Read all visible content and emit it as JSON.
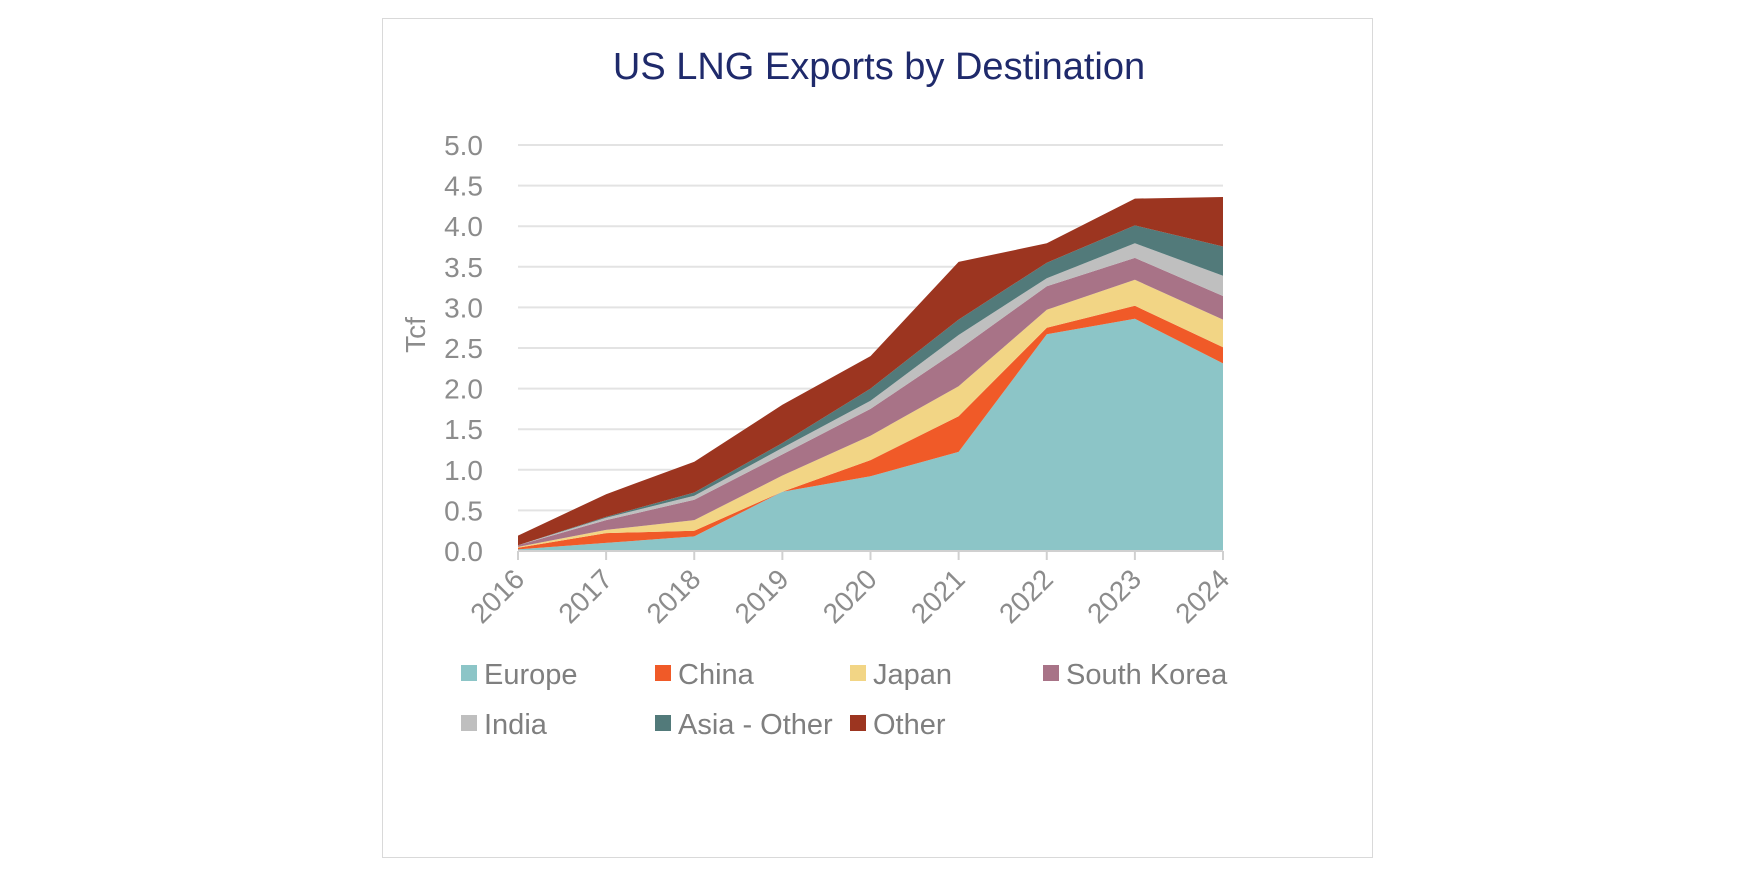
{
  "chart_data": {
    "type": "area",
    "stacked": true,
    "title": "US LNG Exports by Destination",
    "xlabel": "",
    "ylabel": "Tcf",
    "ylim": [
      0,
      5.0
    ],
    "yticks": [
      "0.0",
      "0.5",
      "1.0",
      "1.5",
      "2.0",
      "2.5",
      "3.0",
      "3.5",
      "4.0",
      "4.5",
      "5.0"
    ],
    "x": [
      "2016",
      "2017",
      "2018",
      "2019",
      "2020",
      "2021",
      "2022",
      "2023",
      "2024"
    ],
    "grid": true,
    "legend_position": "bottom",
    "series": [
      {
        "name": "Europe",
        "color": "#8cc5c7",
        "values": [
          0.02,
          0.1,
          0.18,
          0.73,
          0.92,
          1.22,
          2.67,
          2.86,
          2.31
        ]
      },
      {
        "name": "China",
        "color": "#f05a28",
        "values": [
          0.02,
          0.12,
          0.07,
          0.0,
          0.2,
          0.44,
          0.08,
          0.16,
          0.2
        ]
      },
      {
        "name": "Japan",
        "color": "#f2d585",
        "values": [
          0.01,
          0.04,
          0.13,
          0.2,
          0.3,
          0.37,
          0.22,
          0.32,
          0.34
        ]
      },
      {
        "name": "South Korea",
        "color": "#a87387",
        "values": [
          0.02,
          0.12,
          0.25,
          0.26,
          0.33,
          0.45,
          0.29,
          0.27,
          0.29
        ]
      },
      {
        "name": "India",
        "color": "#bfbfbf",
        "values": [
          0.0,
          0.03,
          0.05,
          0.08,
          0.1,
          0.18,
          0.1,
          0.18,
          0.25
        ]
      },
      {
        "name": "Asia - Other",
        "color": "#527a7a",
        "values": [
          0.0,
          0.01,
          0.04,
          0.06,
          0.15,
          0.19,
          0.19,
          0.22,
          0.36
        ]
      },
      {
        "name": "Other",
        "color": "#9c3520",
        "values": [
          0.12,
          0.28,
          0.38,
          0.47,
          0.4,
          0.71,
          0.24,
          0.33,
          0.61
        ]
      }
    ]
  }
}
